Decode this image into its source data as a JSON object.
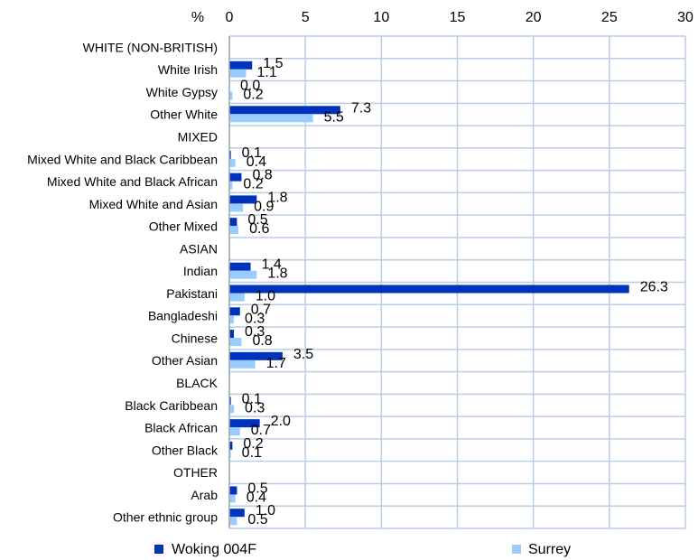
{
  "chart_data": {
    "type": "bar",
    "orientation": "horizontal",
    "unit_label": "%",
    "xlim": [
      0,
      30
    ],
    "xticks": [
      0,
      5,
      10,
      15,
      20,
      25,
      30
    ],
    "xtick_labels": [
      "0",
      "5",
      "10",
      "15",
      "20",
      "25",
      "30"
    ],
    "grid": true,
    "legend_position": "bottom",
    "categories": [
      "WHITE (NON-BRITISH)",
      "White Irish",
      "White Gypsy",
      "Other White",
      "MIXED",
      "Mixed White and Black Caribbean",
      "Mixed White and Black African",
      "Mixed White and Asian",
      "Other Mixed",
      "ASIAN",
      "Indian",
      "Pakistani",
      "Bangladeshi",
      "Chinese",
      "Other Asian",
      "BLACK",
      "Black Caribbean",
      "Black African",
      "Other Black",
      "OTHER",
      "Arab",
      "Other ethnic group"
    ],
    "series": [
      {
        "name": "Woking 004F",
        "color": "#0033bb",
        "values": [
          null,
          1.5,
          0.0,
          7.3,
          null,
          0.1,
          0.8,
          1.8,
          0.5,
          null,
          1.4,
          26.3,
          0.7,
          0.3,
          3.5,
          null,
          0.1,
          2.0,
          0.2,
          null,
          0.5,
          1.0
        ],
        "labels": [
          "",
          "1.5",
          "0.0",
          "7.3",
          "",
          "0.1",
          "0.8",
          "1.8",
          "0.5",
          "",
          "1.4",
          "26.3",
          "0.7",
          "0.3",
          "3.5",
          "",
          "0.1",
          "2.0",
          "0.2",
          "",
          "0.5",
          "1.0"
        ]
      },
      {
        "name": "Surrey",
        "color": "#99ccff",
        "values": [
          null,
          1.1,
          0.2,
          5.5,
          null,
          0.4,
          0.2,
          0.9,
          0.6,
          null,
          1.8,
          1.0,
          0.3,
          0.8,
          1.7,
          null,
          0.3,
          0.7,
          0.1,
          null,
          0.4,
          0.5
        ],
        "labels": [
          "",
          "1.1",
          "0.2",
          "5.5",
          "",
          "0.4",
          "0.2",
          "0.9",
          "0.6",
          "",
          "1.8",
          "1.0",
          "0.3",
          "0.8",
          "1.7",
          "",
          "0.3",
          "0.7",
          "0.1",
          "",
          "0.4",
          "0.5"
        ]
      }
    ]
  }
}
